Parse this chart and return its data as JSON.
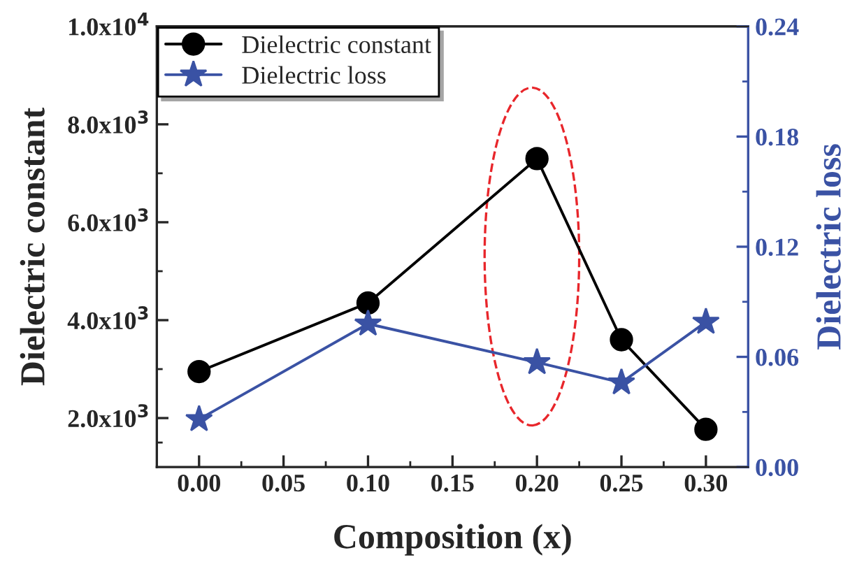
{
  "chart_data": {
    "type": "line",
    "xlabel": "Composition (x)",
    "ylabel": "Dielectric constant",
    "y2label": "Dielectric loss",
    "x": [
      0.0,
      0.1,
      0.2,
      0.25,
      0.3
    ],
    "series": [
      {
        "name": "Dielectric constant",
        "color": "#000000",
        "marker": "circle",
        "values": [
          2950,
          4350,
          7300,
          3600,
          1770
        ]
      },
      {
        "name": "Dielectric loss",
        "color": "#3a52a4",
        "marker": "star",
        "axis": "y2",
        "values": [
          0.026,
          0.078,
          0.057,
          0.046,
          0.079
        ]
      }
    ],
    "xlim": [
      -0.025,
      0.325
    ],
    "xticks": [
      {
        "value": 0.0,
        "label": "0.00"
      },
      {
        "value": 0.05,
        "label": "0.05"
      },
      {
        "value": 0.1,
        "label": "0.10"
      },
      {
        "value": 0.15,
        "label": "0.15"
      },
      {
        "value": 0.2,
        "label": "0.20"
      },
      {
        "value": 0.25,
        "label": "0.25"
      },
      {
        "value": 0.3,
        "label": "0.30"
      }
    ],
    "ylim": [
      1000,
      10000
    ],
    "yticks": [
      {
        "value": 2000,
        "label": "2.0x10$^{3}$"
      },
      {
        "value": 4000,
        "label": "4.0x10$^{3}$"
      },
      {
        "value": 6000,
        "label": "6.0x10$^{3}$"
      },
      {
        "value": 8000,
        "label": "8.0x10$^{3}$"
      },
      {
        "value": 10000,
        "label": "1.0x10$^{4}$"
      }
    ],
    "y2lim": [
      0,
      0.24
    ],
    "y2ticks": [
      {
        "value": 0,
        "label": "0.00"
      },
      {
        "value": 0.06,
        "label": "0.06"
      },
      {
        "value": 0.12,
        "label": "0.12"
      },
      {
        "value": 0.18,
        "label": "0.18"
      },
      {
        "value": 0.24,
        "label": "0.24"
      }
    ],
    "grid": false,
    "legend": "top left",
    "line_style": "solid"
  }
}
